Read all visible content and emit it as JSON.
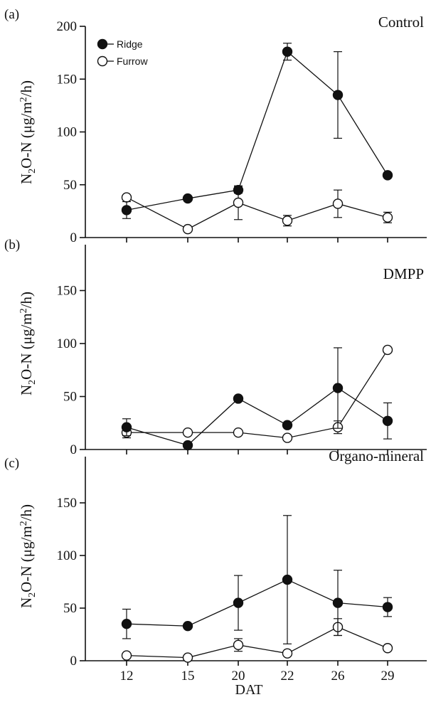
{
  "chart_data": [
    {
      "type": "line",
      "panel_label": "(a)",
      "title": "Control",
      "ylabel_main": "N",
      "ylabel_sub": "2",
      "ylabel_mid": "O-N (μg/m",
      "ylabel_sup": "2",
      "ylabel_end": "/h)",
      "ylim": [
        0,
        200
      ],
      "yticks": [
        "0",
        "50",
        "100",
        "150",
        "200"
      ],
      "x": [
        "12",
        "15",
        "20",
        "22",
        "26",
        "29"
      ],
      "legend": {
        "position": "top-left",
        "ridge": "Ridge",
        "furrow": "Furrow"
      },
      "series": [
        {
          "name": "Ridge",
          "marker": "filled",
          "values": [
            26,
            37,
            45,
            176,
            135,
            59
          ],
          "err": [
            8,
            0,
            3,
            8,
            41,
            0
          ]
        },
        {
          "name": "Furrow",
          "marker": "open",
          "values": [
            38,
            8,
            33,
            16,
            32,
            19
          ],
          "err": [
            0,
            0,
            16,
            5,
            13,
            5
          ]
        }
      ]
    },
    {
      "type": "line",
      "panel_label": "(b)",
      "title": "DMPP",
      "ylabel_main": "N",
      "ylabel_sub": "2",
      "ylabel_mid": "O-N (μg/m",
      "ylabel_sup": "2",
      "ylabel_end": "/h)",
      "ylim": [
        0,
        200
      ],
      "yticks": [
        "0",
        "50",
        "100",
        "150"
      ],
      "x": [
        "12",
        "15",
        "20",
        "22",
        "26",
        "29"
      ],
      "series": [
        {
          "name": "Ridge",
          "marker": "filled",
          "values": [
            21,
            4,
            48,
            23,
            58,
            27
          ],
          "err": [
            8,
            0,
            0,
            0,
            38,
            17
          ]
        },
        {
          "name": "Furrow",
          "marker": "open",
          "values": [
            16,
            16,
            16,
            11,
            21,
            94
          ],
          "err": [
            5,
            0,
            0,
            0,
            6,
            0
          ]
        }
      ]
    },
    {
      "type": "line",
      "panel_label": "(c)",
      "title": "Organo-mineral",
      "ylabel_main": "N",
      "ylabel_sub": "2",
      "ylabel_mid": "O-N (μg/m",
      "ylabel_sup": "2",
      "ylabel_end": "/h)",
      "ylim": [
        0,
        200
      ],
      "yticks": [
        "0",
        "50",
        "100",
        "150"
      ],
      "x": [
        "12",
        "15",
        "20",
        "22",
        "26",
        "29"
      ],
      "xlabel": "DAT",
      "series": [
        {
          "name": "Ridge",
          "marker": "filled",
          "values": [
            35,
            33,
            55,
            77,
            55,
            51
          ],
          "err": [
            14,
            0,
            26,
            61,
            31,
            9
          ]
        },
        {
          "name": "Furrow",
          "marker": "open",
          "values": [
            5,
            3,
            15,
            7,
            32,
            12
          ],
          "err": [
            0,
            0,
            6,
            0,
            8,
            0
          ]
        }
      ]
    }
  ]
}
